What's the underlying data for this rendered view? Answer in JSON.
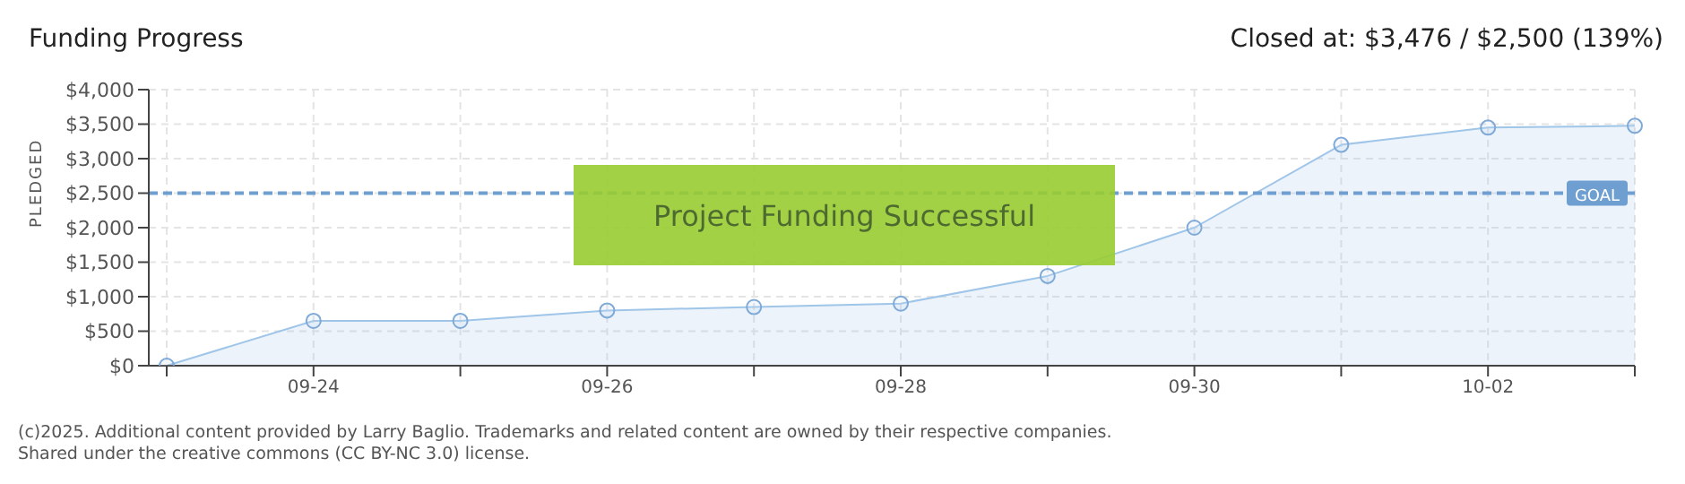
{
  "chart_data": {
    "type": "area",
    "title": "Funding Progress",
    "subtitle": "Closed at: $3,476 / $2,500 (139%)",
    "ylabel": "PLEDGED",
    "categories": [
      null,
      "09-24",
      null,
      "09-26",
      null,
      "09-28",
      null,
      "09-30",
      null,
      "10-02",
      null
    ],
    "series": [
      {
        "color": "#9fc5e8",
        "values": [
          0,
          650,
          650,
          800,
          850,
          900,
          1300,
          2000,
          3200,
          3450,
          3476
        ]
      }
    ],
    "ylim": [
      0,
      4000
    ],
    "yticks": [
      {
        "value": 0,
        "label": "$0"
      },
      {
        "value": 500,
        "label": "$500"
      },
      {
        "value": 1000,
        "label": "$1,000"
      },
      {
        "value": 1500,
        "label": "$1,500"
      },
      {
        "value": 2000,
        "label": "$2,000"
      },
      {
        "value": 2500,
        "label": "$2,500"
      },
      {
        "value": 3000,
        "label": "$3,000"
      },
      {
        "value": 3500,
        "label": "$3,500"
      },
      {
        "value": 4000,
        "label": "$4,000"
      }
    ],
    "ref_lines": [
      {
        "axis": "y",
        "value": 2500,
        "label": "GOAL",
        "color": "#6f9fd0",
        "line_style": "dashed"
      }
    ],
    "annotations": [
      "Project Funding Successful",
      "(c)2025. Additional content provided by Larry Baglio. Trademarks and related content are owned by their respective companies.",
      "Shared under the creative commons (CC BY-NC 3.0) license."
    ],
    "grid": true,
    "legend": false,
    "marker": "circle"
  }
}
